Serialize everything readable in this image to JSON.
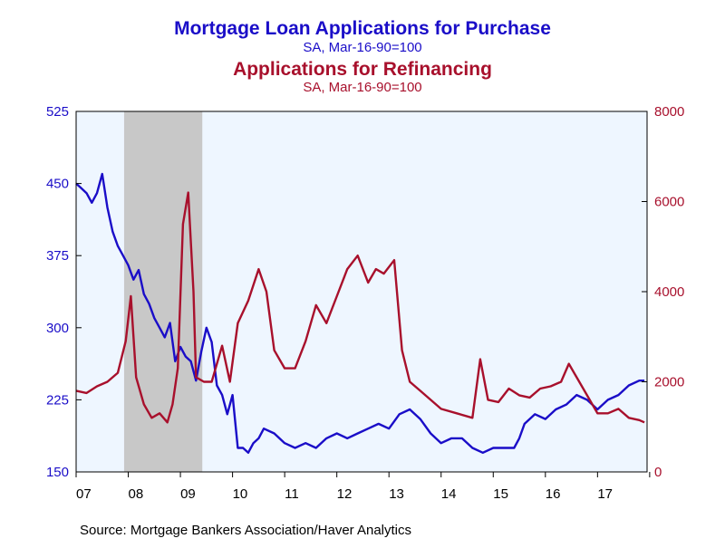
{
  "titles": {
    "purchase_title": "Mortgage Loan Applications for Purchase",
    "purchase_subtitle": "SA, Mar-16-90=100",
    "refi_title": "Applications for Refinancing",
    "refi_subtitle": "SA, Mar-16-90=100"
  },
  "source": "Source:  Mortgage Bankers Association/Haver Analytics",
  "colors": {
    "purchase": "#1a0dc8",
    "refi": "#a8102c",
    "plot_bg": "#eef6ff",
    "recession": "#c8c8c8"
  },
  "chart_data": {
    "type": "line",
    "x_axis": {
      "ticks": [
        "07",
        "08",
        "09",
        "10",
        "11",
        "12",
        "13",
        "14",
        "15",
        "16",
        "17"
      ],
      "range": [
        2007.0,
        2017.95
      ]
    },
    "y_left": {
      "range": [
        150,
        525
      ],
      "ticks": [
        "150",
        "225",
        "300",
        "375",
        "450",
        "525"
      ]
    },
    "y_right": {
      "range": [
        0,
        8000
      ],
      "ticks": [
        "0",
        "2000",
        "4000",
        "6000",
        "8000"
      ]
    },
    "recession_shade": [
      2007.92,
      2009.42
    ],
    "series": [
      {
        "name": "Mortgage Loan Applications for Purchase",
        "axis": "left",
        "x": [
          2007.0,
          2007.1,
          2007.2,
          2007.3,
          2007.4,
          2007.5,
          2007.6,
          2007.7,
          2007.8,
          2007.9,
          2008.0,
          2008.1,
          2008.2,
          2008.3,
          2008.4,
          2008.5,
          2008.6,
          2008.7,
          2008.8,
          2008.9,
          2009.0,
          2009.1,
          2009.2,
          2009.3,
          2009.4,
          2009.5,
          2009.6,
          2009.7,
          2009.8,
          2009.9,
          2010.0,
          2010.1,
          2010.2,
          2010.3,
          2010.4,
          2010.5,
          2010.6,
          2010.8,
          2011.0,
          2011.2,
          2011.4,
          2011.6,
          2011.8,
          2012.0,
          2012.2,
          2012.4,
          2012.6,
          2012.8,
          2013.0,
          2013.2,
          2013.4,
          2013.6,
          2013.8,
          2014.0,
          2014.2,
          2014.4,
          2014.6,
          2014.8,
          2015.0,
          2015.2,
          2015.4,
          2015.5,
          2015.6,
          2015.8,
          2016.0,
          2016.2,
          2016.4,
          2016.6,
          2016.8,
          2017.0,
          2017.2,
          2017.4,
          2017.6,
          2017.8,
          2017.9
        ],
        "values": [
          450,
          445,
          440,
          430,
          440,
          460,
          425,
          400,
          385,
          375,
          365,
          350,
          360,
          335,
          325,
          310,
          300,
          290,
          305,
          265,
          280,
          270,
          265,
          245,
          275,
          300,
          285,
          240,
          230,
          210,
          230,
          175,
          175,
          170,
          180,
          185,
          195,
          190,
          180,
          175,
          180,
          175,
          185,
          190,
          185,
          190,
          195,
          200,
          195,
          210,
          215,
          205,
          190,
          180,
          185,
          185,
          175,
          170,
          175,
          175,
          175,
          185,
          200,
          210,
          205,
          215,
          220,
          230,
          225,
          215,
          225,
          230,
          240,
          245,
          245
        ]
      },
      {
        "name": "Applications for Refinancing",
        "axis": "right",
        "x": [
          2007.0,
          2007.2,
          2007.4,
          2007.6,
          2007.8,
          2007.95,
          2008.05,
          2008.15,
          2008.3,
          2008.45,
          2008.6,
          2008.75,
          2008.85,
          2008.95,
          2009.05,
          2009.15,
          2009.25,
          2009.3,
          2009.45,
          2009.6,
          2009.8,
          2009.95,
          2010.1,
          2010.3,
          2010.5,
          2010.65,
          2010.8,
          2011.0,
          2011.2,
          2011.4,
          2011.6,
          2011.8,
          2012.0,
          2012.2,
          2012.4,
          2012.6,
          2012.75,
          2012.9,
          2013.1,
          2013.25,
          2013.4,
          2013.6,
          2013.8,
          2014.0,
          2014.3,
          2014.6,
          2014.75,
          2014.9,
          2015.1,
          2015.3,
          2015.5,
          2015.7,
          2015.9,
          2016.1,
          2016.3,
          2016.45,
          2016.6,
          2016.8,
          2017.0,
          2017.2,
          2017.4,
          2017.6,
          2017.8,
          2017.9
        ],
        "values": [
          1800,
          1750,
          1900,
          2000,
          2200,
          2900,
          3900,
          2100,
          1500,
          1200,
          1300,
          1100,
          1500,
          2300,
          5500,
          6200,
          4000,
          2100,
          2000,
          2000,
          2800,
          2000,
          3300,
          3800,
          4500,
          4000,
          2700,
          2300,
          2300,
          2900,
          3700,
          3300,
          3900,
          4500,
          4800,
          4200,
          4500,
          4400,
          4700,
          2700,
          2000,
          1800,
          1600,
          1400,
          1300,
          1200,
          2500,
          1600,
          1550,
          1850,
          1700,
          1650,
          1850,
          1900,
          2000,
          2400,
          2100,
          1700,
          1300,
          1300,
          1400,
          1200,
          1150,
          1100
        ]
      }
    ]
  }
}
